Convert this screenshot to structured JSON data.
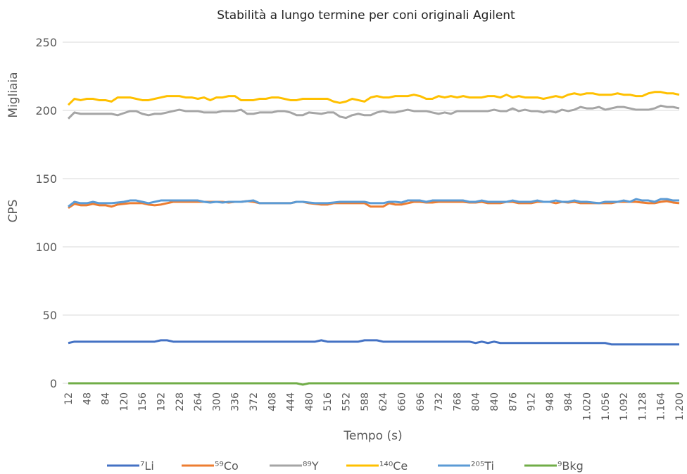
{
  "chart_data": {
    "type": "line",
    "title": "Stabilità a lungo termine per coni originali Agilent",
    "x_label": "Tempo (s)",
    "y_label": "CPS",
    "y_unit_label": "Migliaia",
    "categories": [
      "12",
      null,
      null,
      "48",
      null,
      null,
      "84",
      null,
      null,
      "120",
      null,
      null,
      "156",
      null,
      null,
      "192",
      null,
      null,
      "228",
      null,
      null,
      "264",
      null,
      null,
      "300",
      null,
      null,
      "336",
      null,
      null,
      "372",
      null,
      null,
      "408",
      null,
      null,
      "444",
      null,
      null,
      "480",
      null,
      null,
      "516",
      null,
      null,
      "552",
      null,
      null,
      "588",
      null,
      null,
      "624",
      null,
      null,
      "660",
      null,
      null,
      "696",
      null,
      null,
      "732",
      null,
      null,
      "768",
      null,
      null,
      "804",
      null,
      null,
      "840",
      null,
      null,
      "876",
      null,
      null,
      "912",
      null,
      null,
      "948",
      null,
      null,
      "984",
      null,
      null,
      "1.020",
      null,
      null,
      "1.056",
      null,
      null,
      "1.092",
      null,
      null,
      "1.128",
      null,
      null,
      "1.164",
      null,
      null,
      "1.200"
    ],
    "ylim": [
      0,
      250
    ],
    "yticks": [
      0,
      50,
      100,
      150,
      200,
      250
    ],
    "grid": true,
    "legend": "bottom",
    "series": [
      {
        "name": "⁷Li",
        "color": "#4472c4",
        "values": [
          29.5,
          30.5,
          30.5,
          30.5,
          30.5,
          30.5,
          30.5,
          30.5,
          30.5,
          30.5,
          30.5,
          30.5,
          30.5,
          30.5,
          30.5,
          31.5,
          31.5,
          30.5,
          30.5,
          30.5,
          30.5,
          30.5,
          30.5,
          30.5,
          30.5,
          30.5,
          30.5,
          30.5,
          30.5,
          30.5,
          30.5,
          30.5,
          30.5,
          30.5,
          30.5,
          30.5,
          30.5,
          30.5,
          30.5,
          30.5,
          30.5,
          31.5,
          30.5,
          30.5,
          30.5,
          30.5,
          30.5,
          30.5,
          31.5,
          31.5,
          31.5,
          30.5,
          30.5,
          30.5,
          30.5,
          30.5,
          30.5,
          30.5,
          30.5,
          30.5,
          30.5,
          30.5,
          30.5,
          30.5,
          30.5,
          30.5,
          29.5,
          30.5,
          29.5,
          30.5,
          29.5,
          29.5,
          29.5,
          29.5,
          29.5,
          29.5,
          29.5,
          29.5,
          29.5,
          29.5,
          29.5,
          29.5,
          29.5,
          29.5,
          29.5,
          29.5,
          29.5,
          29.5,
          28.5,
          28.5,
          28.5,
          28.5,
          28.5,
          28.5,
          28.5,
          28.5,
          28.5,
          28.5,
          28.5,
          28.5
        ]
      },
      {
        "name": "⁵⁹Co",
        "color": "#ed7d31",
        "values": [
          128.5,
          131.5,
          130.5,
          130.5,
          131.5,
          130.5,
          130.5,
          129.5,
          131,
          131.5,
          132,
          132,
          132,
          131,
          130.5,
          131,
          132,
          133,
          133,
          133,
          133,
          133,
          133,
          133,
          133,
          133,
          132.5,
          133,
          133,
          133.5,
          133,
          132,
          132,
          132,
          132,
          132,
          132,
          133,
          133,
          132,
          131.5,
          131,
          131,
          132,
          132,
          132,
          132,
          132,
          132,
          129.5,
          129.5,
          129.5,
          132,
          131,
          131,
          132,
          133,
          133,
          132.5,
          132.5,
          133,
          133,
          133,
          133,
          133,
          132.5,
          132.5,
          133,
          132,
          132,
          132,
          133,
          133,
          132,
          132,
          132,
          133,
          133,
          133,
          132,
          133,
          132.5,
          133,
          132,
          132,
          132,
          132,
          132,
          132,
          133,
          133,
          133,
          133,
          132.5,
          132,
          132,
          133,
          133.5,
          132.5,
          132
        ]
      },
      {
        "name": "⁸⁹Y",
        "color": "#a5a5a5",
        "values": [
          194,
          198.5,
          197.5,
          197.5,
          197.5,
          197.5,
          197.5,
          197.5,
          196.5,
          198,
          199.5,
          199.5,
          197.5,
          196.5,
          197.5,
          197.5,
          198.5,
          199.5,
          200.5,
          199.5,
          199.5,
          199.5,
          198.5,
          198.5,
          198.5,
          199.5,
          199.5,
          199.5,
          200.5,
          197.5,
          197.5,
          198.5,
          198.5,
          198.5,
          199.5,
          199.5,
          198.5,
          196.5,
          196.5,
          198.5,
          198,
          197.5,
          198.5,
          198.5,
          195.5,
          194.5,
          196.5,
          197.5,
          196.5,
          196.5,
          198.5,
          199.5,
          198.5,
          198.5,
          199.5,
          200.5,
          199.5,
          199.5,
          199.5,
          198.5,
          197.5,
          198.5,
          197.5,
          199.5,
          199.5,
          199.5,
          199.5,
          199.5,
          199.5,
          200.5,
          199.5,
          199.5,
          201.5,
          199.5,
          200.5,
          199.5,
          199.5,
          198.5,
          199.5,
          198.5,
          200.5,
          199.5,
          200.5,
          202.5,
          201.5,
          201.5,
          202.5,
          200.5,
          201.5,
          202.5,
          202.5,
          201.5,
          200.5,
          200.5,
          200.5,
          201.5,
          203.5,
          202.5,
          202.5,
          201.5
        ]
      },
      {
        "name": "¹⁴⁰Ce",
        "color": "#ffc000",
        "values": [
          204,
          208.5,
          207.5,
          208.5,
          208.5,
          207.5,
          207.5,
          206.5,
          209.5,
          209.5,
          209.5,
          208.5,
          207.5,
          207.5,
          208.5,
          209.5,
          210.5,
          210.5,
          210.5,
          209.5,
          209.5,
          208.5,
          209.5,
          207.5,
          209.5,
          209.5,
          210.5,
          210.5,
          207.5,
          207.5,
          207.5,
          208.5,
          208.5,
          209.5,
          209.5,
          208.5,
          207.5,
          207.5,
          208.5,
          208.5,
          208.5,
          208.5,
          208.5,
          206.5,
          205.5,
          206.5,
          208.5,
          207.5,
          206.5,
          209.5,
          210.5,
          209.5,
          209.5,
          210.5,
          210.5,
          210.5,
          211.5,
          210.5,
          208.5,
          208.5,
          210.5,
          209.5,
          210.5,
          209.5,
          210.5,
          209.5,
          209.5,
          209.5,
          210.5,
          210.5,
          209.5,
          211.5,
          209.5,
          210.5,
          209.5,
          209.5,
          209.5,
          208.5,
          209.5,
          210.5,
          209.5,
          211.5,
          212.5,
          211.5,
          212.5,
          212.5,
          211.5,
          211.5,
          211.5,
          212.5,
          211.5,
          211.5,
          210.5,
          210.5,
          212.5,
          213.5,
          213.5,
          212.5,
          212.5,
          211.5
        ]
      },
      {
        "name": "²⁰⁵Ti",
        "color": "#5b9bd5",
        "values": [
          129.5,
          133,
          132,
          132,
          133,
          132,
          132,
          132,
          132.5,
          133,
          134,
          134,
          133,
          132,
          133,
          134,
          134,
          134,
          134,
          134,
          134,
          134,
          133,
          132.5,
          133,
          132.5,
          133,
          133,
          133,
          133.5,
          134,
          132,
          132,
          132,
          132,
          132,
          132,
          133,
          133,
          132.5,
          132,
          132,
          132,
          132.5,
          133,
          133,
          133,
          133,
          133,
          132,
          132,
          132,
          133,
          133,
          132.5,
          134,
          134,
          134,
          133,
          134,
          134,
          134,
          134,
          134,
          134,
          133,
          133,
          134,
          133,
          133,
          133,
          133,
          134,
          133,
          133,
          133,
          134,
          133,
          133,
          134,
          133,
          133,
          134,
          133,
          133,
          132.5,
          132,
          133,
          133,
          133,
          134,
          133,
          135,
          134,
          134,
          133,
          135,
          135,
          134,
          134
        ]
      },
      {
        "name": "⁹Bkg",
        "color": "#70ad47",
        "values": [
          0,
          0,
          0,
          0,
          0,
          0,
          0,
          0,
          0,
          0,
          0,
          0,
          0,
          0,
          0,
          0,
          0,
          0,
          0,
          0,
          0,
          0,
          0,
          0,
          0,
          0,
          0,
          0,
          0,
          0,
          0,
          0,
          0,
          0,
          0,
          0,
          0,
          0,
          -1,
          0,
          0,
          0,
          0,
          0,
          0,
          0,
          0,
          0,
          0,
          0,
          0,
          0,
          0,
          0,
          0,
          0,
          0,
          0,
          0,
          0,
          0,
          0,
          0,
          0,
          0,
          0,
          0,
          0,
          0,
          0,
          0,
          0,
          0,
          0,
          0,
          0,
          0,
          0,
          0,
          0,
          0,
          0,
          0,
          0,
          0,
          0,
          0,
          0,
          0,
          0,
          0,
          0,
          0,
          0,
          0,
          0,
          0,
          0,
          0,
          0
        ]
      }
    ]
  }
}
